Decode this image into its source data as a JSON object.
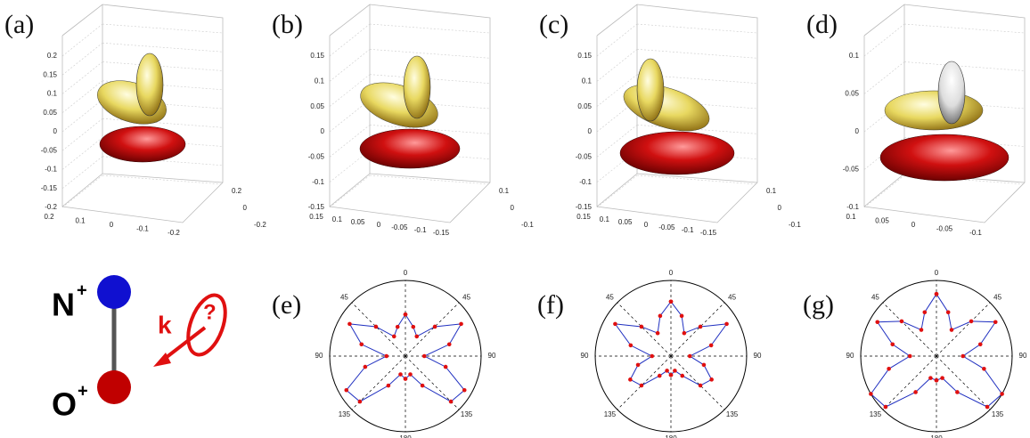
{
  "panels3d": [
    {
      "label": "(a)",
      "zticks": [
        0.2,
        0.15,
        0.1,
        0.05,
        0,
        -0.05,
        -0.1,
        -0.15,
        -0.2
      ],
      "xticks": [
        0.2,
        0.1,
        0,
        -0.1,
        -0.2
      ],
      "yticks": [
        0.2,
        0,
        -0.2
      ]
    },
    {
      "label": "(b)",
      "zticks": [
        0.15,
        0.1,
        0.05,
        0,
        -0.05,
        -0.1,
        -0.15
      ],
      "xticks": [
        0.15,
        0.1,
        0.05,
        0,
        -0.05,
        -0.1,
        -0.15
      ],
      "yticks": [
        0.1,
        0,
        -0.1
      ]
    },
    {
      "label": "(c)",
      "zticks": [
        0.15,
        0.1,
        0.05,
        0,
        -0.05,
        -0.1,
        -0.15
      ],
      "xticks": [
        0.15,
        0.1,
        0.05,
        0,
        -0.05,
        -0.1,
        -0.15
      ],
      "yticks": [
        0.1,
        0,
        -0.1
      ]
    },
    {
      "label": "(d)",
      "zticks": [
        0.1,
        0.05,
        0,
        -0.05,
        -0.1
      ],
      "xticks": [
        0.1,
        0.05,
        0,
        -0.05,
        -0.1
      ],
      "yticks": [
        0.1,
        0,
        -0.1
      ]
    }
  ],
  "polar": {
    "angle_ticks": [
      0,
      45,
      90,
      135,
      180
    ],
    "rlim": [
      0,
      1
    ],
    "theta": [
      0,
      15,
      30,
      45,
      60,
      75,
      90,
      105,
      120,
      135,
      150,
      165,
      180
    ],
    "plots": [
      {
        "label": "(e)",
        "r": [
          0.55,
          0.4,
          0.3,
          0.55,
          0.85,
          0.6,
          0.25,
          0.55,
          0.9,
          0.85,
          0.45,
          0.25,
          0.3
        ]
      },
      {
        "label": "(f)",
        "r": [
          0.72,
          0.55,
          0.35,
          0.55,
          0.85,
          0.55,
          0.25,
          0.45,
          0.62,
          0.55,
          0.3,
          0.2,
          0.25
        ]
      },
      {
        "label": "(g)",
        "r": [
          0.82,
          0.6,
          0.4,
          0.65,
          0.9,
          0.6,
          0.35,
          0.65,
          1.0,
          0.95,
          0.55,
          0.3,
          0.32
        ]
      }
    ]
  },
  "molecule": {
    "top_atom": "N",
    "top_charge": "+",
    "bottom_atom": "O",
    "bottom_charge": "+",
    "arrow_label": "k",
    "rotation_label": "?"
  }
}
